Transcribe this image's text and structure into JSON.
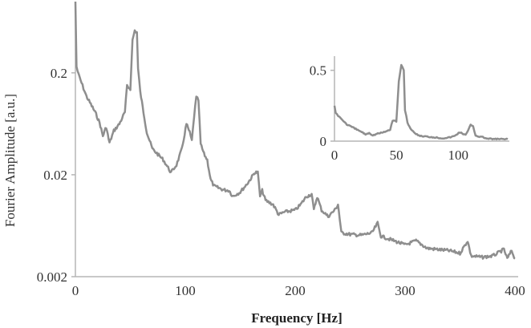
{
  "chart_data": [
    {
      "type": "line",
      "xlabel": "Frequency [Hz]",
      "ylabel": "Fourier Amplitude [a.u.]",
      "xlim": [
        0,
        400
      ],
      "ylim": [
        0.002,
        1
      ],
      "yscale": "log",
      "xticks": [
        "0",
        "100",
        "200",
        "300",
        "400"
      ],
      "xtick_values": [
        0,
        100,
        200,
        300,
        400
      ],
      "yticks": [
        "0.002",
        "0.02",
        "0.2"
      ],
      "ytick_values": [
        0.002,
        0.02,
        0.2
      ],
      "grid": false,
      "line_color": "#8e8e8e",
      "x": [
        0,
        1,
        3,
        10,
        18,
        22,
        25,
        28,
        31,
        35,
        40,
        45,
        47,
        50,
        52,
        54,
        56,
        57,
        59,
        62,
        65,
        70,
        80,
        87,
        92,
        97,
        101,
        104,
        106,
        108,
        110,
        112,
        114,
        117,
        120,
        123,
        126,
        135,
        140,
        143,
        150,
        157,
        160,
        163,
        166,
        168,
        170,
        173,
        180,
        185,
        190,
        200,
        205,
        210,
        215,
        217,
        220,
        224,
        230,
        236,
        239,
        242,
        250,
        260,
        270,
        275,
        278,
        290,
        300,
        310,
        320,
        340,
        350,
        357,
        360,
        370,
        380,
        390,
        393,
        397,
        400
      ],
      "y": [
        1.0,
        0.23,
        0.19,
        0.118,
        0.082,
        0.065,
        0.048,
        0.059,
        0.041,
        0.054,
        0.063,
        0.082,
        0.147,
        0.14,
        0.42,
        0.52,
        0.5,
        0.22,
        0.13,
        0.082,
        0.052,
        0.036,
        0.028,
        0.021,
        0.025,
        0.036,
        0.063,
        0.052,
        0.043,
        0.075,
        0.114,
        0.108,
        0.04,
        0.032,
        0.028,
        0.018,
        0.0155,
        0.0142,
        0.014,
        0.0123,
        0.0135,
        0.0167,
        0.0186,
        0.021,
        0.021,
        0.0123,
        0.014,
        0.0112,
        0.0102,
        0.0081,
        0.0086,
        0.009,
        0.0102,
        0.0122,
        0.0129,
        0.009,
        0.0122,
        0.009,
        0.0078,
        0.009,
        0.0102,
        0.0054,
        0.0052,
        0.0051,
        0.0054,
        0.0067,
        0.005,
        0.0045,
        0.0041,
        0.0045,
        0.0038,
        0.0036,
        0.0034,
        0.0045,
        0.0032,
        0.0031,
        0.0032,
        0.0037,
        0.003,
        0.0036,
        0.003
      ]
    },
    {
      "type": "line",
      "inset": true,
      "position": "top-right",
      "xlim": [
        0,
        140
      ],
      "ylim": [
        0,
        0.6
      ],
      "yscale": "linear",
      "xticks": [
        "0",
        "50",
        "100"
      ],
      "xtick_values": [
        0,
        50,
        100
      ],
      "yticks": [
        "0",
        "0.5"
      ],
      "ytick_values": [
        0,
        0.5
      ],
      "grid": false,
      "line_color": "#8e8e8e",
      "x": [
        0,
        1,
        3,
        10,
        18,
        22,
        25,
        28,
        31,
        35,
        40,
        45,
        47,
        50,
        52,
        54,
        56,
        57,
        59,
        62,
        65,
        70,
        80,
        87,
        92,
        97,
        101,
        104,
        106,
        108,
        110,
        112,
        114,
        117,
        120,
        123,
        126,
        135,
        140
      ],
      "y": [
        0.25,
        0.2,
        0.18,
        0.118,
        0.082,
        0.065,
        0.048,
        0.059,
        0.041,
        0.054,
        0.063,
        0.082,
        0.147,
        0.14,
        0.42,
        0.54,
        0.5,
        0.22,
        0.13,
        0.082,
        0.052,
        0.036,
        0.028,
        0.021,
        0.025,
        0.036,
        0.063,
        0.052,
        0.043,
        0.075,
        0.114,
        0.108,
        0.04,
        0.032,
        0.028,
        0.018,
        0.0155,
        0.0142,
        0.014
      ]
    }
  ]
}
